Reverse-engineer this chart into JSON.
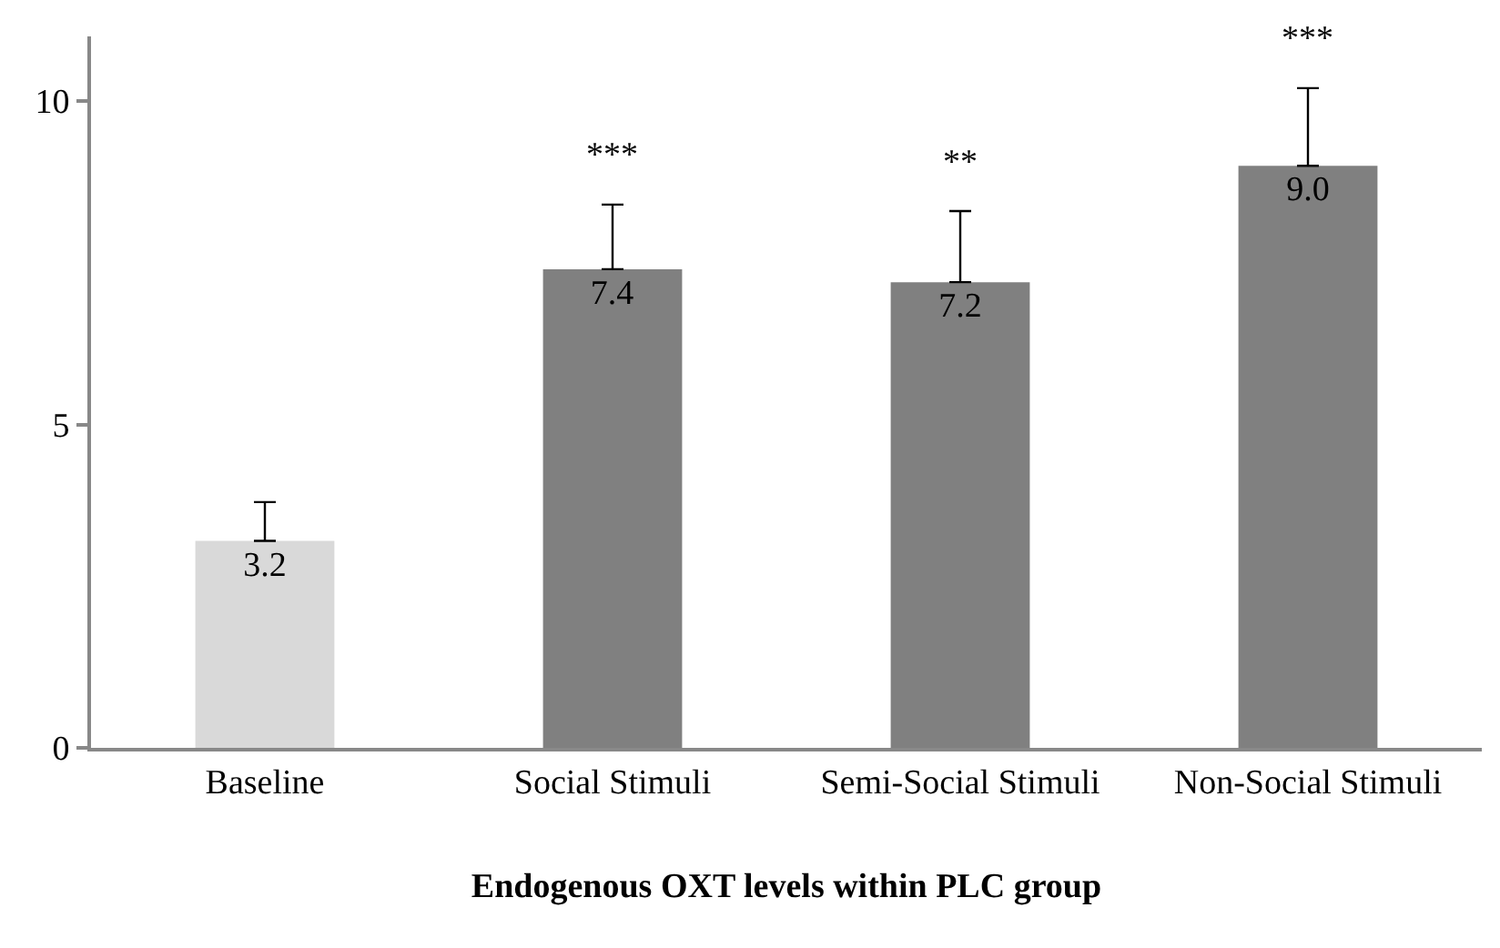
{
  "chart_data": {
    "type": "bar",
    "xlabel": "Endogenous OXT levels within PLC group",
    "categories": [
      "Baseline",
      "Social Stimuli",
      "Semi-Social Stimuli",
      "Non-Social Stimuli"
    ],
    "values": [
      3.2,
      7.4,
      7.2,
      9.0
    ],
    "colors": [
      "#d9d9d9",
      "#808080",
      "#808080",
      "#808080"
    ],
    "errors": [
      [
        3.2,
        3.8
      ],
      [
        7.4,
        8.4
      ],
      [
        7.2,
        8.3
      ],
      [
        9.0,
        10.2
      ]
    ],
    "value_labels": [
      "3.2",
      "7.4",
      "7.2",
      "9.0"
    ],
    "ylim": [
      0,
      11
    ],
    "yticks": [
      0,
      5,
      10
    ],
    "annotations": [
      {
        "text": "***",
        "x": "Social Stimuli",
        "y": 8.4
      },
      {
        "text": "**",
        "x": "Semi-Social Stimuli",
        "y": 8.3
      },
      {
        "text": "***",
        "x": "Non-Social Stimuli",
        "y": 10.2
      }
    ]
  }
}
